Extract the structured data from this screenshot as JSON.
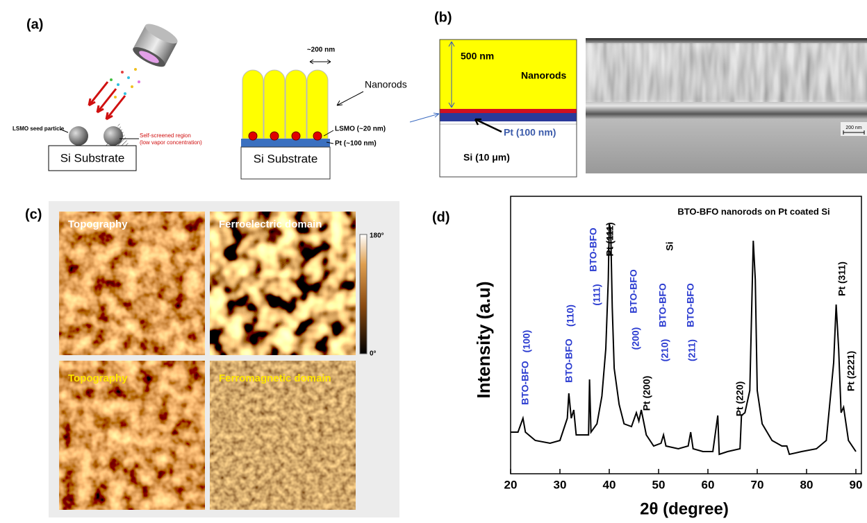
{
  "panels": {
    "a": {
      "label": "(a)",
      "seed_label": "LSMO seed particle",
      "region_label": [
        "Self-screened region",
        "(low vapor concentration)"
      ],
      "substrate_left": "Si Substrate",
      "width_label": "~200 nm",
      "nanorods": "Nanorods",
      "lsmo": "LSMO (~20 nm)",
      "pt": "Pt (~100 nm)",
      "substrate_right": "Si Substrate"
    },
    "b": {
      "label": "(b)",
      "thickness": "500 nm",
      "nanorods": "Nanorods",
      "pt": "Pt (100 nm)",
      "si": "Si (10 μm)",
      "scale": "200 nm"
    },
    "c": {
      "label": "(c)",
      "images": [
        "Topography",
        "Ferroelectric domain",
        "Topography",
        "Ferromagnetic domain"
      ],
      "colorbar_max": "180°",
      "colorbar_min": "0°"
    }
  },
  "chart_data": {
    "type": "line",
    "label": "(d)",
    "legend": "BTO-BFO nanorods on Pt coated Si",
    "x_label": "2θ (degree)",
    "y_label": "Intensity (a.u)",
    "color": "#000000",
    "xlim": [
      20,
      90
    ],
    "xticks": [
      20,
      30,
      40,
      50,
      60,
      70,
      80,
      90
    ],
    "ylim": [
      0,
      100
    ],
    "x": [
      20,
      21.5,
      22.5,
      23,
      25,
      28,
      30,
      31.5,
      31.8,
      32.3,
      32.8,
      33.3,
      35,
      35.8,
      36,
      36.3,
      37.5,
      38.5,
      39.3,
      39.8,
      40,
      40.3,
      40.6,
      41,
      42,
      43,
      44.5,
      45.5,
      46,
      46.5,
      47.5,
      49,
      50.5,
      51,
      51.5,
      54,
      56,
      56.5,
      57,
      59,
      61,
      62,
      62.3,
      64,
      66.5,
      66.8,
      67.5,
      68.5,
      69.2,
      69.6,
      70,
      71,
      73,
      75,
      76,
      76.5,
      79,
      82,
      84,
      85.5,
      86,
      86.5,
      87,
      87.5,
      88.5,
      90
    ],
    "values": [
      15,
      15,
      20,
      15,
      12,
      11,
      12,
      20,
      29,
      20,
      23,
      14,
      14,
      14,
      34,
      15,
      18,
      28,
      45,
      70,
      90,
      88,
      60,
      38,
      25,
      18,
      17,
      22,
      19,
      23,
      14,
      10,
      11,
      14,
      10,
      9,
      10,
      15,
      9,
      8,
      8,
      21,
      7,
      8,
      9,
      21,
      22,
      30,
      84,
      70,
      30,
      18,
      12,
      10,
      10,
      7,
      8,
      9,
      12,
      40,
      61,
      45,
      22,
      24,
      12,
      8
    ],
    "annotations": [
      {
        "text": "BTO-BFO",
        "color": "#2a3bd0"
      },
      {
        "text": "(100)",
        "color": "#2a3bd0"
      },
      {
        "text": "BTO-BFO",
        "color": "#2a3bd0"
      },
      {
        "text": "(110)",
        "color": "#2a3bd0"
      },
      {
        "text": "BTO-BFO",
        "color": "#2a3bd0"
      },
      {
        "text": "(111)",
        "color": "#2a3bd0"
      },
      {
        "text": "BTO-BFO",
        "color": "#2a3bd0"
      },
      {
        "text": "(200)",
        "color": "#2a3bd0"
      },
      {
        "text": "BTO-BFO",
        "color": "#2a3bd0"
      },
      {
        "text": "(210)",
        "color": "#2a3bd0"
      },
      {
        "text": "BTO-BFO",
        "color": "#2a3bd0"
      },
      {
        "text": "(211)",
        "color": "#2a3bd0"
      },
      {
        "text": "Pt (111)",
        "color": "#000000"
      },
      {
        "text": "Pt (200)",
        "color": "#000000"
      },
      {
        "text": "Pt (220)",
        "color": "#000000"
      },
      {
        "text": "Pt (311)",
        "color": "#000000"
      },
      {
        "text": "Pt (2221)",
        "color": "#000000"
      },
      {
        "text": "Si",
        "color": "#000000"
      }
    ]
  }
}
